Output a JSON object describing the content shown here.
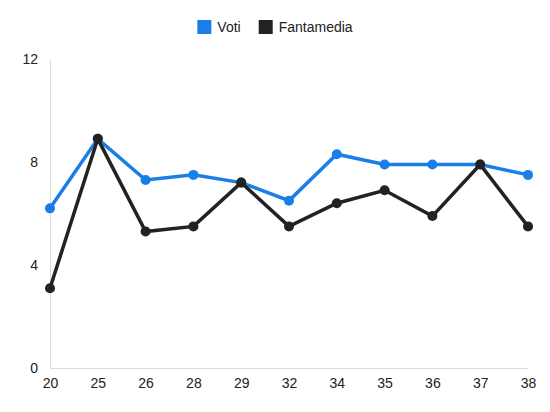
{
  "chart_data": {
    "type": "line",
    "categories": [
      "20",
      "25",
      "26",
      "28",
      "29",
      "32",
      "34",
      "35",
      "36",
      "37",
      "38"
    ],
    "series": [
      {
        "name": "Voti",
        "color": "#1a7ee8",
        "marker": "circle",
        "values": [
          6.2,
          8.9,
          7.3,
          7.5,
          7.2,
          6.5,
          8.3,
          7.9,
          7.9,
          7.9,
          7.5
        ]
      },
      {
        "name": "Fantamedia",
        "color": "#222222",
        "marker": "circle",
        "values": [
          3.1,
          8.9,
          5.3,
          5.5,
          7.2,
          5.5,
          6.4,
          6.9,
          5.9,
          7.9,
          5.5
        ]
      }
    ],
    "ylim": [
      0,
      12
    ],
    "yticks": [
      0,
      4,
      8,
      12
    ],
    "grid": false,
    "legend": "top"
  }
}
